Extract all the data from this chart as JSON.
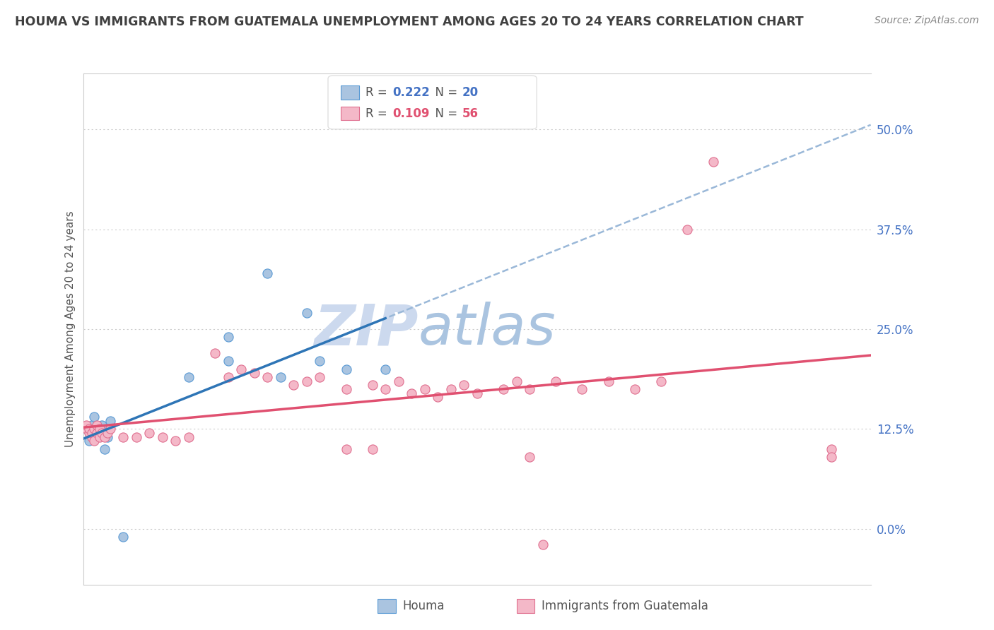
{
  "title": "HOUMA VS IMMIGRANTS FROM GUATEMALA UNEMPLOYMENT AMONG AGES 20 TO 24 YEARS CORRELATION CHART",
  "source": "Source: ZipAtlas.com",
  "ylabel": "Unemployment Among Ages 20 to 24 years",
  "ytick_labels": [
    "0.0%",
    "12.5%",
    "25.0%",
    "37.5%",
    "50.0%"
  ],
  "ytick_values": [
    0.0,
    0.125,
    0.25,
    0.375,
    0.5
  ],
  "xmin": 0.0,
  "xmax": 0.3,
  "ymin": -0.07,
  "ymax": 0.57,
  "houma_R": 0.222,
  "houma_N": 20,
  "guatemala_R": 0.109,
  "guatemala_N": 56,
  "houma_color": "#aac4e0",
  "houma_edge_color": "#5b9bd5",
  "houma_line_color": "#2e75b6",
  "guatemala_color": "#f4b8c8",
  "guatemala_edge_color": "#e07090",
  "guatemala_line_color": "#e05070",
  "dashed_line_color": "#9ab8d8",
  "title_color": "#404040",
  "axis_label_color": "#4472c4",
  "background_color": "#ffffff",
  "houma_x": [
    0.001,
    0.002,
    0.003,
    0.004,
    0.005,
    0.006,
    0.007,
    0.008,
    0.009,
    0.01,
    0.04,
    0.055,
    0.07,
    0.085,
    0.1,
    0.115,
    0.055,
    0.075,
    0.09,
    0.015
  ],
  "houma_y": [
    0.125,
    0.11,
    0.13,
    0.14,
    0.12,
    0.125,
    0.13,
    0.1,
    0.115,
    0.135,
    0.19,
    0.21,
    0.32,
    0.27,
    0.2,
    0.2,
    0.24,
    0.19,
    0.21,
    -0.01
  ],
  "guatemala_x": [
    0.001,
    0.001,
    0.002,
    0.002,
    0.003,
    0.003,
    0.004,
    0.004,
    0.005,
    0.005,
    0.006,
    0.006,
    0.007,
    0.008,
    0.009,
    0.01,
    0.015,
    0.02,
    0.025,
    0.03,
    0.035,
    0.04,
    0.05,
    0.055,
    0.06,
    0.065,
    0.07,
    0.08,
    0.085,
    0.09,
    0.1,
    0.11,
    0.115,
    0.12,
    0.125,
    0.13,
    0.135,
    0.14,
    0.145,
    0.15,
    0.16,
    0.165,
    0.17,
    0.18,
    0.19,
    0.2,
    0.21,
    0.22,
    0.1,
    0.11,
    0.17,
    0.175,
    0.285,
    0.285,
    0.23,
    0.24
  ],
  "guatemala_y": [
    0.125,
    0.13,
    0.12,
    0.125,
    0.115,
    0.12,
    0.125,
    0.11,
    0.12,
    0.13,
    0.115,
    0.125,
    0.12,
    0.115,
    0.12,
    0.125,
    0.115,
    0.115,
    0.12,
    0.115,
    0.11,
    0.115,
    0.22,
    0.19,
    0.2,
    0.195,
    0.19,
    0.18,
    0.185,
    0.19,
    0.175,
    0.18,
    0.175,
    0.185,
    0.17,
    0.175,
    0.165,
    0.175,
    0.18,
    0.17,
    0.175,
    0.185,
    0.175,
    0.185,
    0.175,
    0.185,
    0.175,
    0.185,
    0.1,
    0.1,
    0.09,
    -0.02,
    0.1,
    0.09,
    0.375,
    0.46
  ]
}
